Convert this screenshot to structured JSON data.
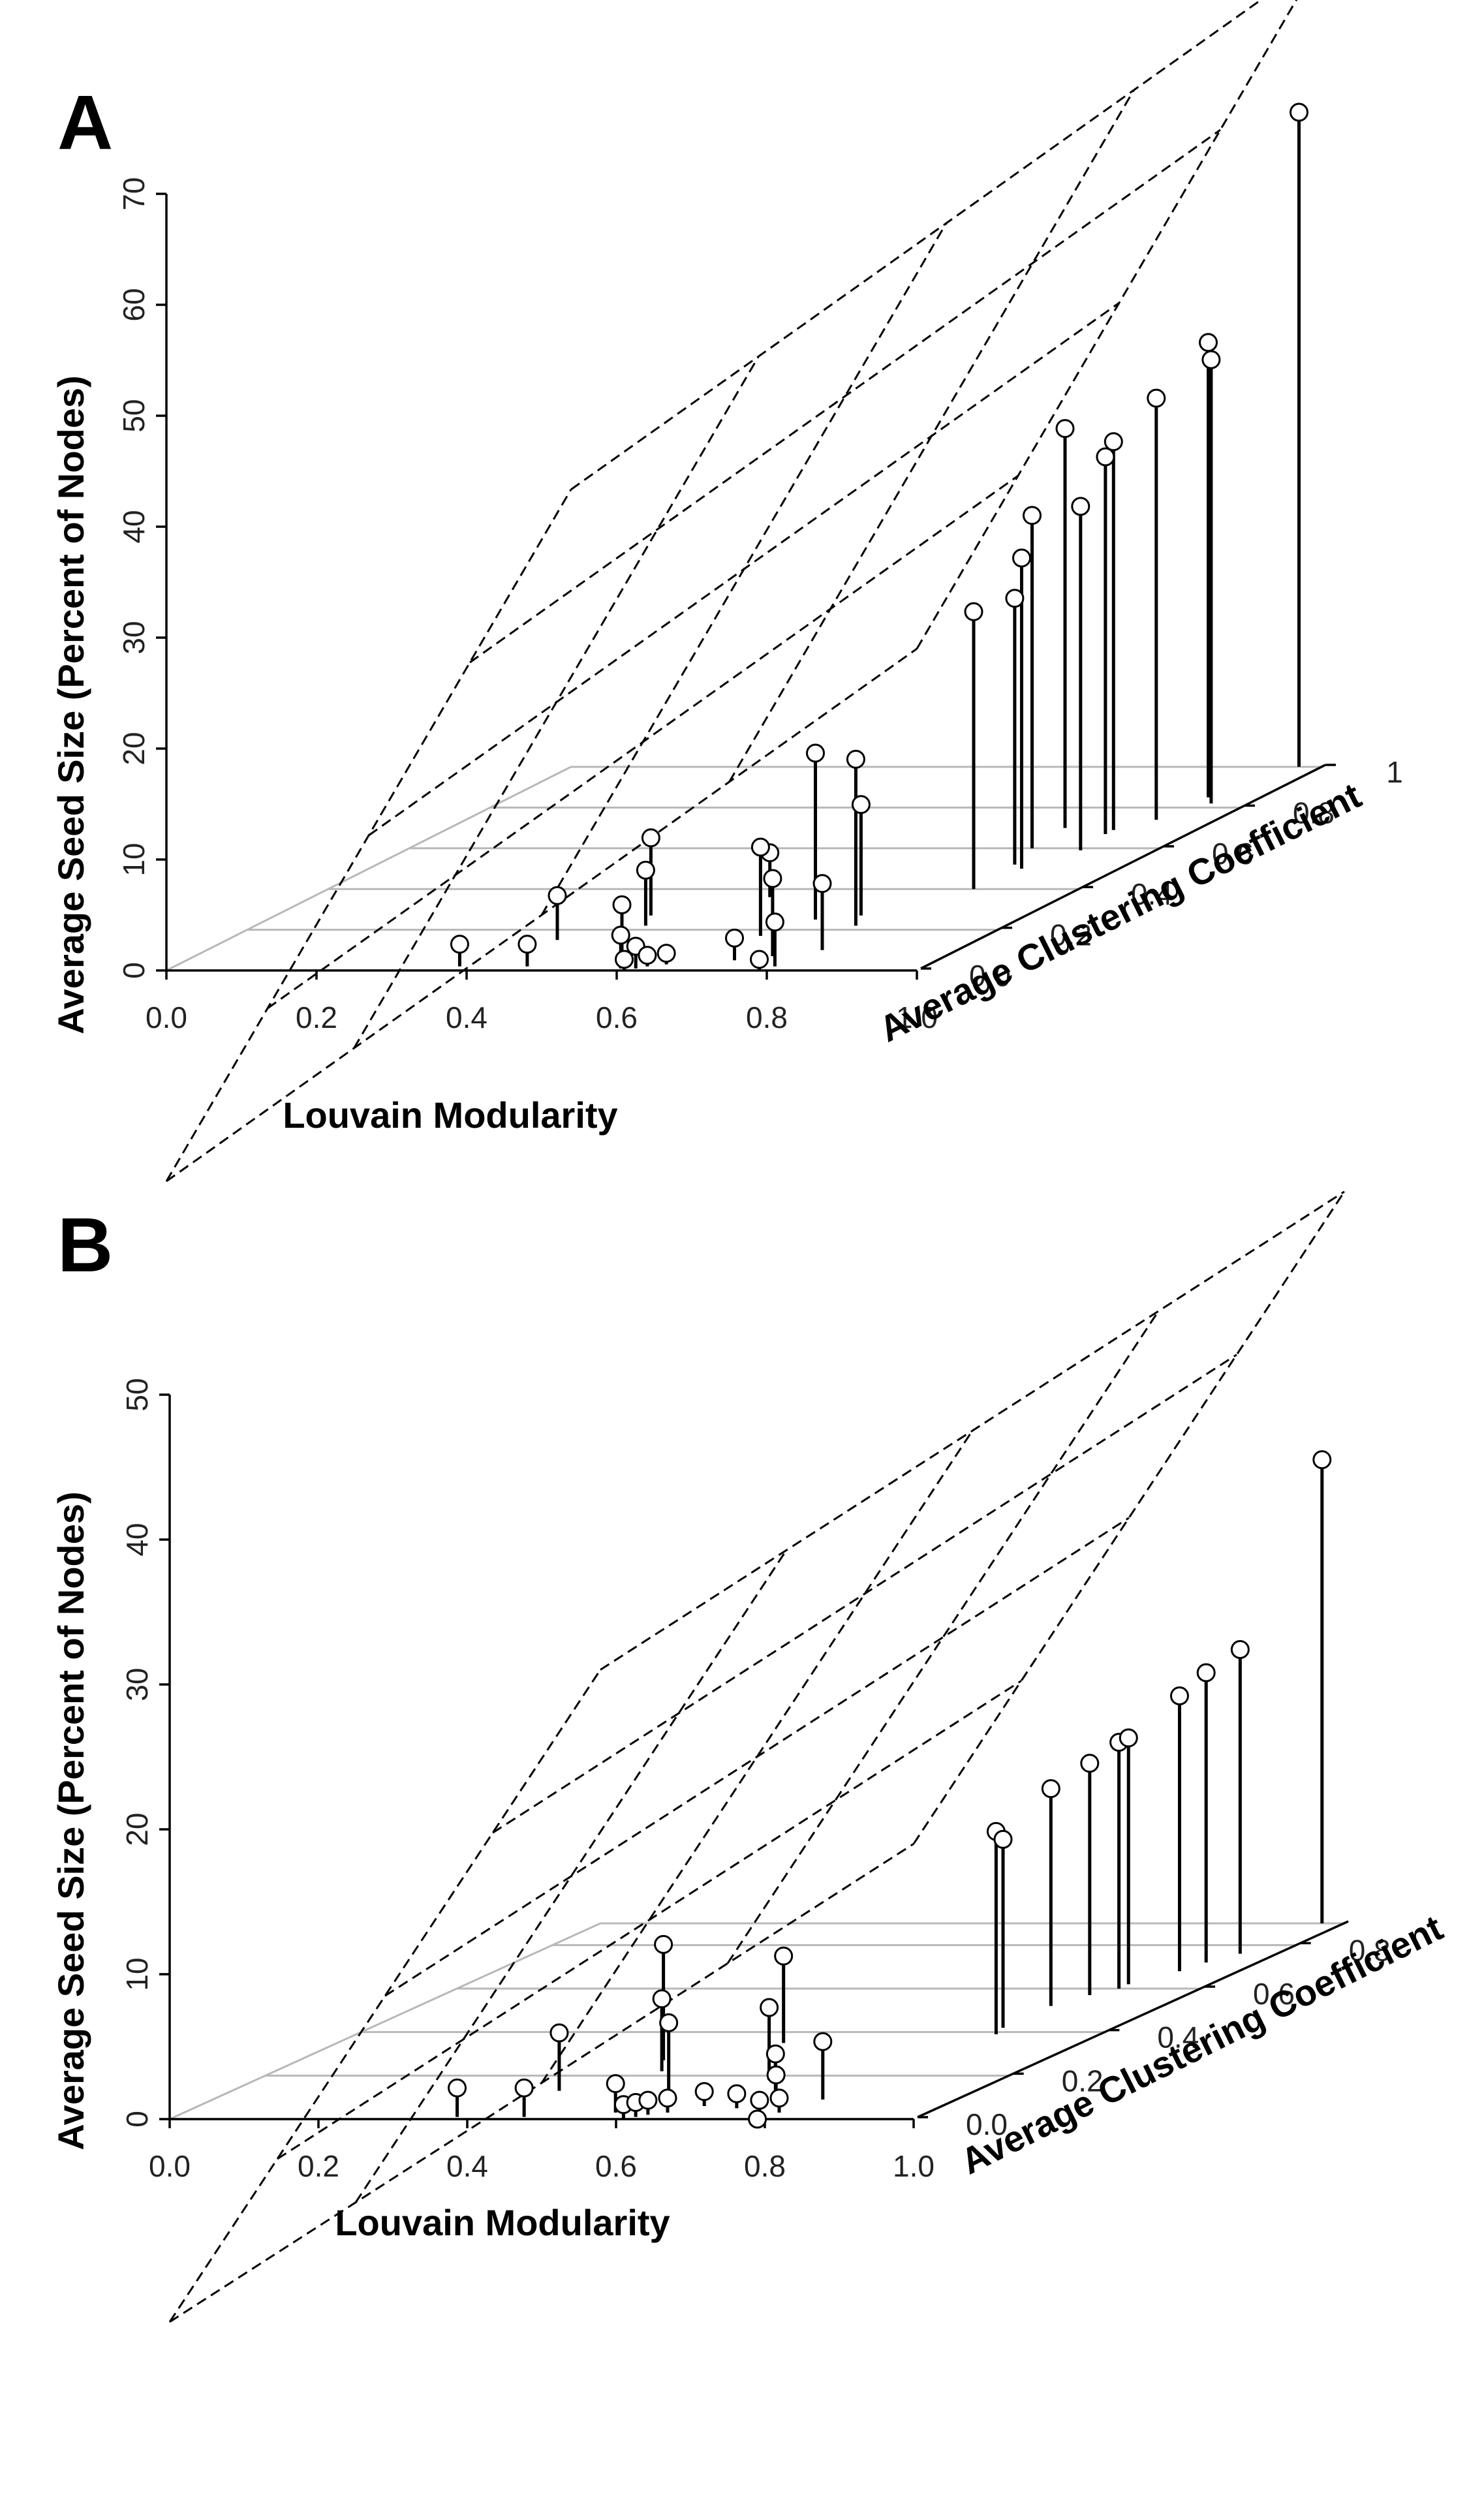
{
  "chart_data": [
    {
      "panel_label": "A",
      "type": "scatter3d",
      "xlabel": "Louvain Modularity",
      "ylabel": "Average Clustering Coefficient",
      "zlabel": "Average Seed Size (Percent of Nodes)",
      "x_ticks": [
        "0.0",
        "0.2",
        "0.4",
        "0.6",
        "0.8",
        "1.0"
      ],
      "y_ticks": [
        "0.0",
        "0.2",
        "0.4",
        "0.6",
        "0.8",
        "1"
      ],
      "z_ticks": [
        "0",
        "10",
        "20",
        "30",
        "40",
        "50",
        "60",
        "70"
      ],
      "xlim": [
        0,
        1
      ],
      "ylim": [
        0,
        1
      ],
      "zlim": [
        0,
        70
      ],
      "regression_plane": {
        "intercept": -19,
        "x_coef": 48,
        "y_coef": 44
      },
      "points": [
        {
          "x": 0.38,
          "y": 0.02,
          "z": 2
        },
        {
          "x": 0.44,
          "y": 0.15,
          "z": 4
        },
        {
          "x": 0.47,
          "y": 0.02,
          "z": 2
        },
        {
          "x": 0.5,
          "y": 0.27,
          "z": 7
        },
        {
          "x": 0.52,
          "y": 0.22,
          "z": 5
        },
        {
          "x": 0.58,
          "y": 0.05,
          "z": 5
        },
        {
          "x": 0.61,
          "y": 0.36,
          "z": 4
        },
        {
          "x": 0.6,
          "y": 0.01,
          "z": 3
        },
        {
          "x": 0.61,
          "y": 0.0,
          "z": 1
        },
        {
          "x": 0.62,
          "y": 0.01,
          "z": 2
        },
        {
          "x": 0.63,
          "y": 0.02,
          "z": 1
        },
        {
          "x": 0.65,
          "y": 0.03,
          "z": 1
        },
        {
          "x": 0.7,
          "y": 0.17,
          "z": 8
        },
        {
          "x": 0.73,
          "y": 0.05,
          "z": 2
        },
        {
          "x": 0.73,
          "y": 0.25,
          "z": 15
        },
        {
          "x": 0.78,
          "y": 0.27,
          "z": 10
        },
        {
          "x": 0.77,
          "y": 0.07,
          "z": 7
        },
        {
          "x": 0.8,
          "y": 0.02,
          "z": 4
        },
        {
          "x": 0.8,
          "y": 0.22,
          "z": 15
        },
        {
          "x": 0.79,
          "y": 0.0,
          "z": 1
        },
        {
          "x": 0.82,
          "y": 0.1,
          "z": 6
        },
        {
          "x": 0.86,
          "y": 0.4,
          "z": 25
        },
        {
          "x": 0.85,
          "y": 0.52,
          "z": 24
        },
        {
          "x": 0.83,
          "y": 0.6,
          "z": 30
        },
        {
          "x": 0.82,
          "y": 0.7,
          "z": 36
        },
        {
          "x": 0.87,
          "y": 0.5,
          "z": 28
        },
        {
          "x": 0.9,
          "y": 0.59,
          "z": 31
        },
        {
          "x": 0.89,
          "y": 0.67,
          "z": 34
        },
        {
          "x": 0.89,
          "y": 0.69,
          "z": 35
        },
        {
          "x": 0.92,
          "y": 0.74,
          "z": 38
        },
        {
          "x": 0.93,
          "y": 0.85,
          "z": 41
        },
        {
          "x": 0.95,
          "y": 0.82,
          "z": 40
        },
        {
          "x": 0.97,
          "y": 1.0,
          "z": 59
        }
      ]
    },
    {
      "panel_label": "B",
      "type": "scatter3d",
      "xlabel": "Louvain Modularity",
      "ylabel": "Average Clustering Coefficient",
      "zlabel": "Average Seed Size (Percent of Nodes)",
      "x_ticks": [
        "0.0",
        "0.2",
        "0.4",
        "0.6",
        "0.8",
        "1.0"
      ],
      "y_ticks": [
        "0.0",
        "0.2",
        "0.4",
        "0.6",
        "0.8"
      ],
      "z_ticks": [
        "0",
        "10",
        "20",
        "30",
        "40",
        "50"
      ],
      "xlim": [
        0,
        1
      ],
      "ylim": [
        0,
        0.9
      ],
      "zlim": [
        0,
        50
      ],
      "regression_plane": {
        "intercept": -14,
        "x_coef": 33,
        "y_coef": 35
      },
      "points": [
        {
          "x": 0.38,
          "y": 0.01,
          "z": 2
        },
        {
          "x": 0.44,
          "y": 0.13,
          "z": 4
        },
        {
          "x": 0.47,
          "y": 0.01,
          "z": 2
        },
        {
          "x": 0.49,
          "y": 0.27,
          "z": 8
        },
        {
          "x": 0.52,
          "y": 0.22,
          "z": 5
        },
        {
          "x": 0.58,
          "y": 0.03,
          "z": 2
        },
        {
          "x": 0.6,
          "y": 0.35,
          "z": 6
        },
        {
          "x": 0.6,
          "y": 0.11,
          "z": 5
        },
        {
          "x": 0.61,
          "y": 0.0,
          "z": 1
        },
        {
          "x": 0.62,
          "y": 0.01,
          "z": 1
        },
        {
          "x": 0.63,
          "y": 0.02,
          "z": 1
        },
        {
          "x": 0.65,
          "y": 0.03,
          "z": 1
        },
        {
          "x": 0.68,
          "y": 0.06,
          "z": 1
        },
        {
          "x": 0.69,
          "y": 0.18,
          "z": 5
        },
        {
          "x": 0.73,
          "y": 0.05,
          "z": 1
        },
        {
          "x": 0.75,
          "y": 0.1,
          "z": 3
        },
        {
          "x": 0.77,
          "y": 0.07,
          "z": 2
        },
        {
          "x": 0.78,
          "y": 0.02,
          "z": 1
        },
        {
          "x": 0.79,
          "y": 0.0,
          "z": 0
        },
        {
          "x": 0.8,
          "y": 0.03,
          "z": 1
        },
        {
          "x": 0.82,
          "y": 0.09,
          "z": 4
        },
        {
          "x": 0.86,
          "y": 0.39,
          "z": 14
        },
        {
          "x": 0.85,
          "y": 0.52,
          "z": 15
        },
        {
          "x": 0.87,
          "y": 0.57,
          "z": 16
        },
        {
          "x": 0.85,
          "y": 0.42,
          "z": 13
        },
        {
          "x": 0.89,
          "y": 0.6,
          "z": 17
        },
        {
          "x": 0.89,
          "y": 0.62,
          "z": 17
        },
        {
          "x": 0.92,
          "y": 0.68,
          "z": 19
        },
        {
          "x": 0.93,
          "y": 0.72,
          "z": 20
        },
        {
          "x": 0.95,
          "y": 0.76,
          "z": 21
        },
        {
          "x": 0.97,
          "y": 0.9,
          "z": 32
        }
      ]
    }
  ]
}
